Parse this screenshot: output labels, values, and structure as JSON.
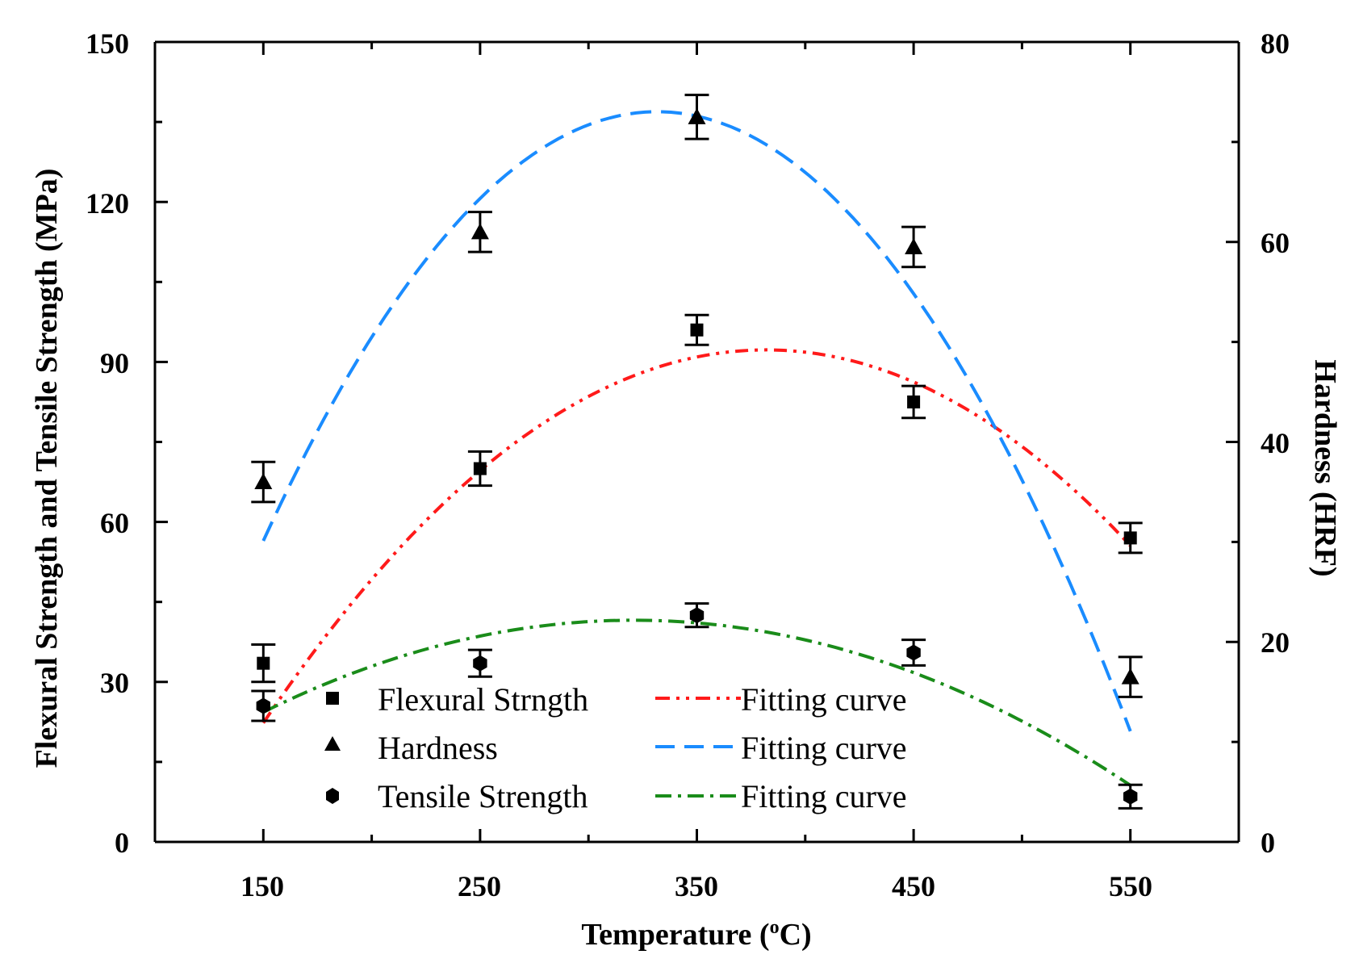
{
  "chart_data": {
    "type": "scatter",
    "title": "",
    "xlabel": "Temperature (",
    "xlabel_unit_sup": "o",
    "xlabel_unit": "C)",
    "ylabel": "Flexural Strength and Tensile Strength (MPa)",
    "y2label": "Hardness (HRF)",
    "xlim": [
      100,
      600
    ],
    "ylim": [
      0,
      150
    ],
    "y2lim": [
      0,
      80
    ],
    "xticks": [
      "150",
      "250",
      "350",
      "450",
      "550"
    ],
    "yticks": [
      "0",
      "30",
      "60",
      "90",
      "120",
      "150"
    ],
    "y2ticks": [
      "0",
      "20",
      "40",
      "60",
      "80"
    ],
    "grid": false,
    "legend_position": "bottom-left",
    "series": [
      {
        "name": "Flexural Strngth",
        "axis": "left",
        "marker": "square",
        "x": [
          150,
          250,
          350,
          450,
          550
        ],
        "values": [
          33.5,
          70,
          96,
          82.5,
          57
        ],
        "errors": [
          3.5,
          3.2,
          2.8,
          3.0,
          2.8
        ],
        "fit_label": "Fitting curve",
        "fit_color": "#ff1a1a",
        "fit_style": "dash-dot-dot",
        "fit_coeffs": [
          -97.4,
          0.9931,
          -0.0013
        ]
      },
      {
        "name": "Hardness",
        "axis": "right",
        "marker": "triangle",
        "x": [
          150,
          250,
          350,
          450,
          550
        ],
        "values": [
          36,
          61,
          72.5,
          59.5,
          16.5
        ],
        "errors": [
          2.0,
          2.0,
          2.2,
          2.0,
          2.0
        ],
        "fit_label": "Fitting curve",
        "fit_color": "#1a8cff",
        "fit_style": "dash",
        "fit_coeffs": [
          -70,
          0.8624,
          -0.0013
        ]
      },
      {
        "name": "Tensile Strength",
        "axis": "left",
        "marker": "hexagon",
        "x": [
          150,
          250,
          350,
          450,
          550
        ],
        "values": [
          25.5,
          33.5,
          42.5,
          35.5,
          8.5
        ],
        "errors": [
          2.8,
          2.5,
          2.2,
          2.4,
          2.2
        ],
        "fit_label": "Fitting curve",
        "fit_color": "#1a8c1a",
        "fit_style": "dash-dot",
        "fit_coeffs": [
          -19.2,
          0.3787,
          -0.00059
        ]
      }
    ]
  }
}
